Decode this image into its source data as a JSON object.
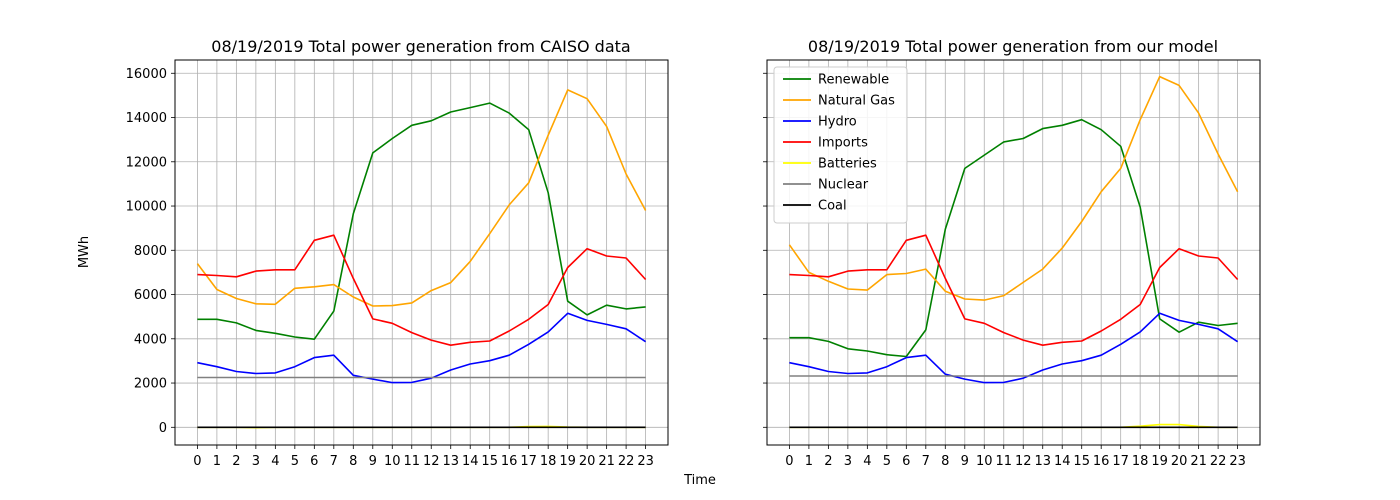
{
  "figure": {
    "xlabel": "Time",
    "ylabel": "MWh"
  },
  "chart_data": [
    {
      "type": "line",
      "title": "08/19/2019 Total power generation from CAISO data",
      "xlabel": "Time",
      "ylabel": "MWh",
      "x": [
        0,
        1,
        2,
        3,
        4,
        5,
        6,
        7,
        8,
        9,
        10,
        11,
        12,
        13,
        14,
        15,
        16,
        17,
        18,
        19,
        20,
        21,
        22,
        23
      ],
      "xticks": [
        "0",
        "1",
        "2",
        "3",
        "4",
        "5",
        "6",
        "7",
        "8",
        "9",
        "10",
        "11",
        "12",
        "13",
        "14",
        "15",
        "16",
        "17",
        "18",
        "19",
        "20",
        "21",
        "22",
        "23"
      ],
      "yticks": [
        "0",
        "2000",
        "4000",
        "6000",
        "8000",
        "10000",
        "12000",
        "14000",
        "16000"
      ],
      "ylim": [
        -800,
        16600
      ],
      "grid": true,
      "legend": "none",
      "series": [
        {
          "name": "Renewable",
          "color": "#008000",
          "values": [
            4880,
            4880,
            4720,
            4380,
            4250,
            4080,
            3980,
            5250,
            9650,
            12400,
            13050,
            13650,
            13850,
            14250,
            14450,
            14650,
            14200,
            13450,
            10600,
            5700,
            5080,
            5520,
            5350,
            5440
          ]
        },
        {
          "name": "Natural Gas",
          "color": "#FFA500",
          "values": [
            7400,
            6230,
            5820,
            5580,
            5560,
            6280,
            6350,
            6450,
            5890,
            5480,
            5500,
            5620,
            6180,
            6540,
            7500,
            8750,
            10050,
            11050,
            13200,
            15250,
            14850,
            13600,
            11450,
            9800
          ]
        },
        {
          "name": "Hydro",
          "color": "#0000FF",
          "values": [
            2920,
            2740,
            2520,
            2430,
            2460,
            2740,
            3150,
            3260,
            2350,
            2180,
            2020,
            2030,
            2220,
            2590,
            2860,
            3010,
            3260,
            3750,
            4310,
            5150,
            4830,
            4650,
            4450,
            3870
          ]
        },
        {
          "name": "Imports",
          "color": "#FF0000",
          "values": [
            6900,
            6860,
            6800,
            7060,
            7120,
            7120,
            8450,
            8680,
            6730,
            4900,
            4700,
            4280,
            3940,
            3710,
            3840,
            3900,
            4350,
            4880,
            5550,
            7220,
            8070,
            7740,
            7650,
            6680
          ]
        },
        {
          "name": "Batteries",
          "color": "#FFFF00",
          "values": [
            0,
            0,
            0,
            -20,
            0,
            0,
            0,
            0,
            0,
            0,
            0,
            0,
            0,
            0,
            0,
            0,
            0,
            30,
            40,
            10,
            0,
            0,
            0,
            0
          ]
        },
        {
          "name": "Nuclear",
          "color": "#808080",
          "values": [
            2250,
            2250,
            2250,
            2250,
            2250,
            2250,
            2250,
            2250,
            2250,
            2250,
            2250,
            2250,
            2250,
            2250,
            2250,
            2250,
            2250,
            2250,
            2250,
            2250,
            2250,
            2250,
            2250,
            2250
          ]
        },
        {
          "name": "Coal",
          "color": "#000000",
          "values": [
            0,
            0,
            0,
            0,
            0,
            0,
            0,
            0,
            0,
            0,
            0,
            0,
            0,
            0,
            0,
            0,
            0,
            0,
            0,
            0,
            0,
            0,
            0,
            0
          ]
        }
      ]
    },
    {
      "type": "line",
      "title": "08/19/2019 Total power generation from our model",
      "xlabel": "Time",
      "ylabel": "MWh",
      "x": [
        0,
        1,
        2,
        3,
        4,
        5,
        6,
        7,
        8,
        9,
        10,
        11,
        12,
        13,
        14,
        15,
        16,
        17,
        18,
        19,
        20,
        21,
        22,
        23
      ],
      "xticks": [
        "0",
        "1",
        "2",
        "3",
        "4",
        "5",
        "6",
        "7",
        "8",
        "9",
        "10",
        "11",
        "12",
        "13",
        "14",
        "15",
        "16",
        "17",
        "18",
        "19",
        "20",
        "21",
        "22",
        "23"
      ],
      "yticks": [],
      "ylim": [
        -800,
        16600
      ],
      "grid": true,
      "legend": "upper-left",
      "series": [
        {
          "name": "Renewable",
          "color": "#008000",
          "values": [
            4050,
            4050,
            3880,
            3550,
            3450,
            3280,
            3200,
            4400,
            8950,
            11700,
            12300,
            12900,
            13050,
            13500,
            13650,
            13900,
            13450,
            12700,
            9950,
            4900,
            4300,
            4750,
            4600,
            4700
          ]
        },
        {
          "name": "Natural Gas",
          "color": "#FFA500",
          "values": [
            8250,
            7000,
            6600,
            6250,
            6200,
            6900,
            6950,
            7150,
            6150,
            5800,
            5750,
            5950,
            6550,
            7150,
            8100,
            9300,
            10650,
            11700,
            13900,
            15850,
            15450,
            14200,
            12350,
            10650
          ]
        },
        {
          "name": "Hydro",
          "color": "#0000FF",
          "values": [
            2920,
            2740,
            2520,
            2430,
            2460,
            2740,
            3150,
            3260,
            2400,
            2180,
            2020,
            2030,
            2220,
            2590,
            2860,
            3010,
            3260,
            3750,
            4310,
            5150,
            4830,
            4650,
            4450,
            3870
          ]
        },
        {
          "name": "Imports",
          "color": "#FF0000",
          "values": [
            6900,
            6860,
            6800,
            7060,
            7120,
            7120,
            8450,
            8680,
            6730,
            4900,
            4700,
            4280,
            3940,
            3710,
            3840,
            3900,
            4350,
            4880,
            5550,
            7220,
            8070,
            7740,
            7650,
            6680
          ]
        },
        {
          "name": "Batteries",
          "color": "#FFFF00",
          "values": [
            0,
            0,
            0,
            0,
            0,
            0,
            0,
            0,
            0,
            0,
            0,
            0,
            0,
            0,
            0,
            0,
            0,
            0,
            50,
            120,
            120,
            40,
            0,
            0
          ]
        },
        {
          "name": "Nuclear",
          "color": "#808080",
          "values": [
            2320,
            2320,
            2320,
            2320,
            2320,
            2320,
            2320,
            2320,
            2320,
            2320,
            2320,
            2320,
            2320,
            2320,
            2320,
            2320,
            2320,
            2320,
            2320,
            2320,
            2320,
            2320,
            2320,
            2320
          ]
        },
        {
          "name": "Coal",
          "color": "#000000",
          "values": [
            0,
            0,
            0,
            0,
            0,
            0,
            0,
            0,
            0,
            0,
            0,
            0,
            0,
            0,
            0,
            0,
            0,
            0,
            0,
            0,
            0,
            0,
            0,
            0
          ]
        }
      ]
    }
  ]
}
